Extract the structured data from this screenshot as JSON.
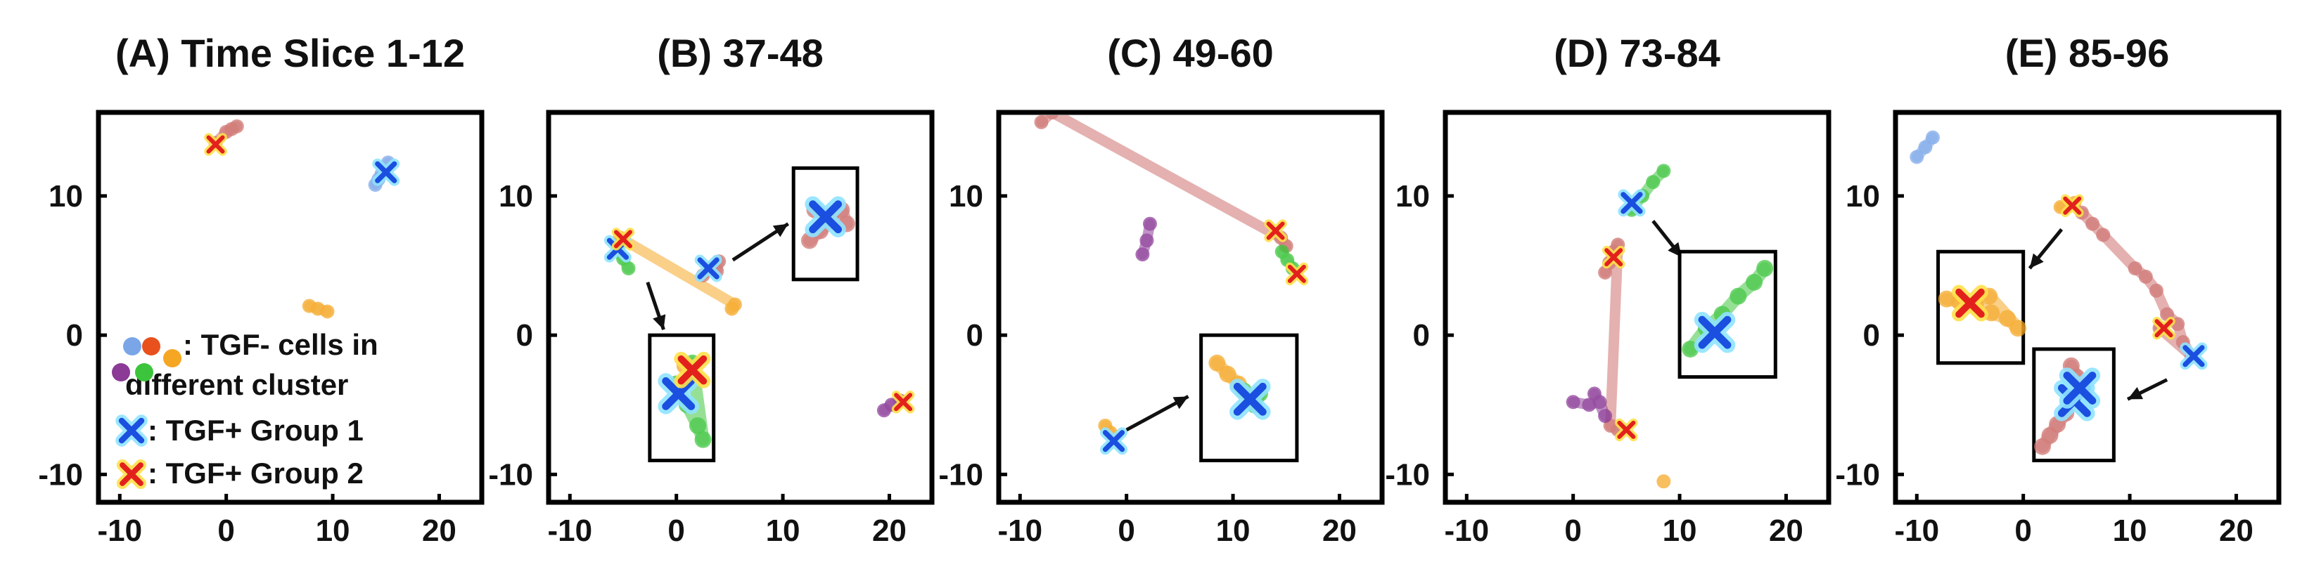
{
  "colors": {
    "blue": "#7aa6e8",
    "orange": "#f5a623",
    "red": "#cd6f6c",
    "purple": "#8b3a96",
    "green": "#3cc43c",
    "group1_marker": "#1a4fe0",
    "group1_halo": "#8fe3ff",
    "group2_marker": "#e3211c",
    "group2_halo": "#ffe04a"
  },
  "legend": {
    "line1": ": TGF-  cells in",
    "line2": "different cluster",
    "group1": ": TGF+ Group 1",
    "group2": ": TGF+ Group 2",
    "dots": [
      "blue",
      "red",
      "orange",
      "purple",
      "green"
    ],
    "dot_colors": [
      "#7aa6e8",
      "#e8501e",
      "#f5a623",
      "#8b3a96",
      "#3cc43c"
    ]
  },
  "chart_data": [
    {
      "type": "scatter",
      "title": "(A) Time Slice 1-12",
      "xlim": [
        -12,
        24
      ],
      "ylim": [
        -12,
        16
      ],
      "xticks": [
        "-10",
        "0",
        "10",
        "20"
      ],
      "yticks": [
        "10",
        "0",
        "-10"
      ],
      "clusters": [
        {
          "color": "red",
          "points": [
            [
              -1,
              13.8
            ],
            [
              0,
              14.6
            ],
            [
              1,
              15
            ],
            [
              0.5,
              14.8
            ]
          ]
        },
        {
          "color": "blue",
          "points": [
            [
              14,
              10.8
            ],
            [
              14.6,
              11.6
            ],
            [
              15.2,
              12.4
            ],
            [
              14.3,
              11.2
            ]
          ]
        },
        {
          "color": "orange",
          "points": [
            [
              7.8,
              2.1
            ],
            [
              8.6,
              1.9
            ],
            [
              9.5,
              1.7
            ]
          ]
        }
      ],
      "group1": [
        [
          15,
          11.7
        ]
      ],
      "group2": [
        [
          -1,
          13.7
        ]
      ]
    },
    {
      "type": "scatter",
      "title": "(B) 37-48",
      "xlim": [
        -12,
        24
      ],
      "ylim": [
        -12,
        16
      ],
      "xticks": [
        "-10",
        "0",
        "10",
        "20"
      ],
      "yticks": [
        "10",
        "0",
        "-10"
      ],
      "clusters": [
        {
          "color": "green",
          "points": [
            [
              -5.5,
              6.5
            ],
            [
              -5,
              5.5
            ],
            [
              -4.5,
              4.8
            ]
          ]
        },
        {
          "color": "orange",
          "points": [
            [
              -5.3,
              7
            ],
            [
              5.5,
              2.2
            ],
            [
              5.2,
              1.9
            ]
          ]
        },
        {
          "color": "red",
          "points": [
            [
              2.5,
              4.3
            ],
            [
              3.2,
              4.8
            ],
            [
              4,
              5.3
            ],
            [
              3.8,
              4.6
            ]
          ]
        },
        {
          "color": "purple",
          "points": [
            [
              19.5,
              -5.4
            ],
            [
              20.2,
              -5
            ],
            [
              21,
              -4.7
            ]
          ]
        }
      ],
      "group1": [
        [
          -5.5,
          6.2
        ],
        [
          3,
          4.8
        ]
      ],
      "group2": [
        [
          -5,
          6.9
        ],
        [
          21.3,
          -4.8
        ]
      ],
      "insets": [
        {
          "box": [
            -2.5,
            3.5,
            -9,
            0
          ],
          "arrow": {
            "from": [
              -2.7,
              3.8
            ],
            "to": [
              -1.2,
              0.4
            ]
          },
          "points": [
            {
              "color": "green",
              "xy": [
                [
                  0,
                  -3.5
                ],
                [
                  1,
                  -5
                ],
                [
                  2,
                  -6.5
                ],
                [
                  2.5,
                  -7.5
                ],
                [
                  1.5,
                  -2
                ]
              ]
            },
            {
              "color": "orange",
              "xy": [
                [
                  0.8,
                  -2.2
                ]
              ]
            }
          ],
          "group1": [
            [
              0.2,
              -4.2
            ]
          ],
          "group2": [
            [
              1.5,
              -2.5
            ]
          ]
        },
        {
          "box": [
            11,
            17,
            4,
            12
          ],
          "arrow": {
            "from": [
              5.3,
              5.4
            ],
            "to": [
              10.5,
              8
            ]
          },
          "points": [
            {
              "color": "red",
              "xy": [
                [
                  12.5,
                  6.8
                ],
                [
                  13.5,
                  7.5
                ],
                [
                  14.5,
                  8.2
                ],
                [
                  15.5,
                  9
                ],
                [
                  16,
                  8
                ],
                [
                  13,
                  9
                ]
              ]
            }
          ],
          "group1": [
            [
              14,
              8.5
            ]
          ],
          "group2": []
        }
      ]
    },
    {
      "type": "scatter",
      "title": "(C) 49-60",
      "xlim": [
        -12,
        24
      ],
      "ylim": [
        -12,
        16
      ],
      "xticks": [
        "-10",
        "0",
        "10",
        "20"
      ],
      "yticks": [
        "10",
        "0",
        "-10"
      ],
      "clusters": [
        {
          "color": "red",
          "points": [
            [
              -8,
              15.3
            ],
            [
              -7,
              16
            ],
            [
              14.5,
              7
            ],
            [
              15,
              6.4
            ]
          ]
        },
        {
          "color": "purple",
          "points": [
            [
              1.5,
              5.8
            ],
            [
              1.9,
              6.8
            ],
            [
              2.2,
              8
            ]
          ]
        },
        {
          "color": "green",
          "points": [
            [
              14.6,
              6
            ],
            [
              15.1,
              5.4
            ],
            [
              15.6,
              4.8
            ]
          ]
        },
        {
          "color": "orange",
          "points": [
            [
              -2,
              -6.5
            ],
            [
              -1.5,
              -7
            ]
          ]
        }
      ],
      "group1": [
        [
          -1.2,
          -7.6
        ]
      ],
      "group2": [
        [
          14,
          7.5
        ],
        [
          16,
          4.4
        ]
      ],
      "insets": [
        {
          "box": [
            7,
            16,
            -9,
            0
          ],
          "arrow": {
            "from": [
              0,
              -6.8
            ],
            "to": [
              5.8,
              -4.4
            ]
          },
          "points": [
            {
              "color": "orange",
              "xy": [
                [
                  8.5,
                  -2
                ],
                [
                  9.5,
                  -2.8
                ],
                [
                  10.5,
                  -3.5
                ]
              ]
            },
            {
              "color": "green",
              "xy": [
                [
                  11,
                  -4
                ],
                [
                  12,
                  -5
                ],
                [
                  12.5,
                  -4.2
                ]
              ]
            }
          ],
          "group1": [
            [
              11.6,
              -4.6
            ]
          ],
          "group2": []
        }
      ]
    },
    {
      "type": "scatter",
      "title": "(D) 73-84",
      "xlim": [
        -12,
        24
      ],
      "ylim": [
        -12,
        16
      ],
      "xticks": [
        "-10",
        "0",
        "10",
        "20"
      ],
      "yticks": [
        "10",
        "0",
        "-10"
      ],
      "clusters": [
        {
          "color": "green",
          "points": [
            [
              5.5,
              9
            ],
            [
              6.5,
              10
            ],
            [
              7.5,
              11
            ],
            [
              8.5,
              11.8
            ]
          ]
        },
        {
          "color": "red",
          "points": [
            [
              3,
              4.5
            ],
            [
              3.4,
              5.2
            ],
            [
              3.8,
              6
            ],
            [
              4.2,
              6.5
            ],
            [
              3.5,
              -6.5
            ],
            [
              4.2,
              -6.8
            ]
          ]
        },
        {
          "color": "purple",
          "points": [
            [
              0,
              -4.8
            ],
            [
              1.5,
              -5
            ],
            [
              2.5,
              -4.8
            ],
            [
              3,
              -5.8
            ],
            [
              2,
              -4.2
            ]
          ]
        },
        {
          "color": "orange",
          "points": [
            [
              8.5,
              -10.5
            ]
          ]
        }
      ],
      "group1": [
        [
          5.5,
          9.5
        ]
      ],
      "group2": [
        [
          3.8,
          5.6
        ],
        [
          5,
          -6.8
        ]
      ],
      "insets": [
        {
          "box": [
            10,
            19,
            -3,
            6
          ],
          "arrow": {
            "from": [
              7.5,
              8.2
            ],
            "to": [
              10.2,
              5.6
            ]
          },
          "points": [
            {
              "color": "green",
              "xy": [
                [
                  11,
                  -1
                ],
                [
                  12.5,
                  0.5
                ],
                [
                  14,
                  1.5
                ],
                [
                  15.5,
                  2.8
                ],
                [
                  17,
                  3.8
                ],
                [
                  18,
                  4.8
                ]
              ]
            }
          ],
          "group1": [
            [
              13.3,
              0.2
            ]
          ],
          "group2": []
        }
      ]
    },
    {
      "type": "scatter",
      "title": "(E) 85-96",
      "xlim": [
        -12,
        24
      ],
      "ylim": [
        -12,
        16
      ],
      "xticks": [
        "-10",
        "0",
        "10",
        "20"
      ],
      "yticks": [
        "10",
        "0",
        "-10"
      ],
      "clusters": [
        {
          "color": "blue",
          "points": [
            [
              -10,
              12.8
            ],
            [
              -9.2,
              13.5
            ],
            [
              -8.5,
              14.2
            ]
          ]
        },
        {
          "color": "orange",
          "points": [
            [
              3.5,
              9.2
            ],
            [
              4.8,
              9.5
            ]
          ]
        },
        {
          "color": "red",
          "points": [
            [
              5.5,
              8.8
            ],
            [
              6.5,
              8
            ],
            [
              7.5,
              7.2
            ],
            [
              10.5,
              4.8
            ],
            [
              11.5,
              4.2
            ],
            [
              12.5,
              3.2
            ],
            [
              13.5,
              1.5
            ],
            [
              14.5,
              0.8
            ],
            [
              15,
              -0.5
            ],
            [
              15.8,
              -1.5
            ],
            [
              12.8,
              0.5
            ]
          ]
        }
      ],
      "group1": [
        [
          16,
          -1.5
        ]
      ],
      "group2": [
        [
          4.6,
          9.3
        ],
        [
          13.2,
          0.5
        ]
      ],
      "insets": [
        {
          "box": [
            -8,
            0,
            -2,
            6
          ],
          "arrow": {
            "from": [
              3.6,
              7.6
            ],
            "to": [
              0.6,
              4.8
            ]
          },
          "points": [
            {
              "color": "orange",
              "xy": [
                [
                  -7.2,
                  2.6
                ],
                [
                  -6,
                  2.4
                ],
                [
                  -4.5,
                  2.2
                ],
                [
                  -3,
                  1.6
                ],
                [
                  -1.5,
                  1.2
                ],
                [
                  -0.5,
                  0.5
                ],
                [
                  -3.2,
                  2.8
                ]
              ]
            }
          ],
          "group1": [],
          "group2": [
            [
              -5,
              2.3
            ]
          ]
        },
        {
          "box": [
            1,
            8.5,
            -9,
            -1
          ],
          "arrow": {
            "from": [
              13.5,
              -3.2
            ],
            "to": [
              9.8,
              -4.6
            ]
          },
          "points": [
            {
              "color": "red",
              "xy": [
                [
                  1.8,
                  -8
                ],
                [
                  2.5,
                  -7.2
                ],
                [
                  3.2,
                  -6.4
                ],
                [
                  4,
                  -5.6
                ],
                [
                  4.8,
                  -4.4
                ],
                [
                  5,
                  -3
                ],
                [
                  4.5,
                  -2.2
                ]
              ]
            }
          ],
          "group1": [
            [
              4.8,
              -4.7
            ],
            [
              5.3,
              -3.8
            ]
          ],
          "group2": []
        }
      ]
    }
  ]
}
